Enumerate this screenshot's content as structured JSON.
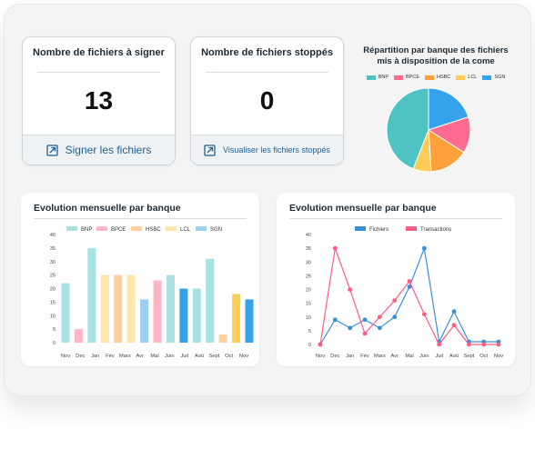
{
  "colors": {
    "BNP": "#4fc3c4",
    "BPCE": "#ff6b8e",
    "HSBC": "#ffa03a",
    "LCL": "#ffcd56",
    "SGN": "#36a2eb",
    "accent": "#1d5f94"
  },
  "kpi_to_sign": {
    "title": "Nombre de fichiers à signer",
    "value": "13",
    "link_label": "Signer les fichiers",
    "icon": "external-link-icon"
  },
  "kpi_stopped": {
    "title": "Nombre de fichiers stoppés",
    "value": "0",
    "link_label": "Visualiser les fichiers stoppés",
    "icon": "external-link-icon"
  },
  "pie": {
    "title_line1": "Répartition par banque des fichiers",
    "title_line2": "mis à disposition de la come",
    "legend": [
      "BNP",
      "BPCE",
      "HSBC",
      "LCL",
      "SGN"
    ]
  },
  "chart_data": [
    {
      "type": "pie",
      "title": "Répartition par banque des fichiers mis à disposition de la come",
      "categories": [
        "BNP",
        "BPCE",
        "HSBC",
        "LCL",
        "SGN"
      ],
      "values": [
        44,
        14,
        15,
        7,
        20
      ],
      "legend": "top"
    },
    {
      "type": "bar",
      "title": "Evolution mensuelle par banque",
      "categories": [
        "Nov",
        "Dec",
        "Jan",
        "Fév",
        "Mars",
        "Avr",
        "Mai",
        "Juin",
        "Juil",
        "Aoû",
        "Sept",
        "Oct",
        "Nov"
      ],
      "legend": [
        "BNP",
        "BPCE",
        "HSBC",
        "LCL",
        "SGN"
      ],
      "bars": [
        {
          "bank": "BNP",
          "value": 22
        },
        {
          "bank": "BPCE",
          "value": 5
        },
        {
          "bank": "BNP",
          "value": 35
        },
        {
          "bank": "LCL",
          "value": 25
        },
        {
          "bank": "HSBC",
          "value": 25
        },
        {
          "bank": "LCL",
          "value": 25
        },
        {
          "bank": "SGN",
          "value": 16
        },
        {
          "bank": "BPCE",
          "value": 23
        },
        {
          "bank": "BNP",
          "value": 25
        },
        {
          "bank": "SGN",
          "value": 20
        },
        {
          "bank": "BNP",
          "value": 20
        },
        {
          "bank": "BNP",
          "value": 31
        },
        {
          "bank": "HSBC",
          "value": 3
        },
        {
          "bank": "LCL",
          "value": 18
        },
        {
          "bank": "SGN",
          "value": 16
        }
      ],
      "yticks": [
        0,
        5,
        10,
        15,
        20,
        25,
        30,
        35,
        40
      ],
      "ylim": [
        0,
        40
      ]
    },
    {
      "type": "line",
      "title": "Evolution mensuelle par banque",
      "categories": [
        "Nov",
        "Dec",
        "Jan",
        "Fév",
        "Mars",
        "Avr",
        "Mai",
        "Juin",
        "Juil",
        "Aoû",
        "Sept",
        "Oct",
        "Nov"
      ],
      "series": [
        {
          "name": "Fichiers",
          "color": "#3a8fdb",
          "values": [
            0,
            9,
            6,
            9,
            6,
            10,
            21,
            35,
            1,
            12,
            1,
            1,
            1
          ]
        },
        {
          "name": "Transactions",
          "color": "#ff5c86",
          "values": [
            0,
            35,
            20,
            4,
            10,
            16,
            23,
            11,
            0,
            7,
            0,
            0,
            0
          ]
        }
      ],
      "yticks": [
        0,
        5,
        10,
        15,
        20,
        25,
        30,
        35,
        40
      ],
      "ylim": [
        0,
        40
      ]
    }
  ],
  "bar_card": {
    "title": "Evolution mensuelle par banque"
  },
  "line_card": {
    "title": "Evolution mensuelle par banque"
  }
}
